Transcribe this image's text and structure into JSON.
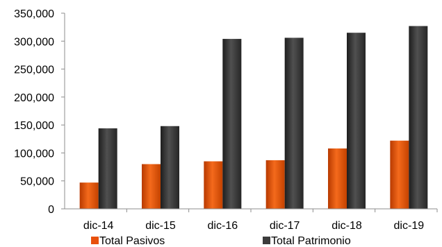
{
  "chart_data": {
    "type": "bar",
    "categories": [
      "dic-14",
      "dic-15",
      "dic-16",
      "dic-17",
      "dic-18",
      "dic-19"
    ],
    "series": [
      {
        "name": "Total Pasivos",
        "values": [
          47000,
          80000,
          85000,
          87000,
          108000,
          122000
        ],
        "color": "#e8500c"
      },
      {
        "name": "Total Patrimonio",
        "values": [
          144000,
          148000,
          304000,
          306000,
          315000,
          327000
        ],
        "color": "#3c3c3c"
      }
    ],
    "y_ticks": [
      "0",
      "50,000",
      "100,000",
      "150,000",
      "200,000",
      "250,000",
      "300,000",
      "350,000"
    ],
    "ylim": [
      0,
      350000
    ],
    "grid": false,
    "legend_position": "bottom",
    "title": "",
    "xlabel": "",
    "ylabel": ""
  }
}
